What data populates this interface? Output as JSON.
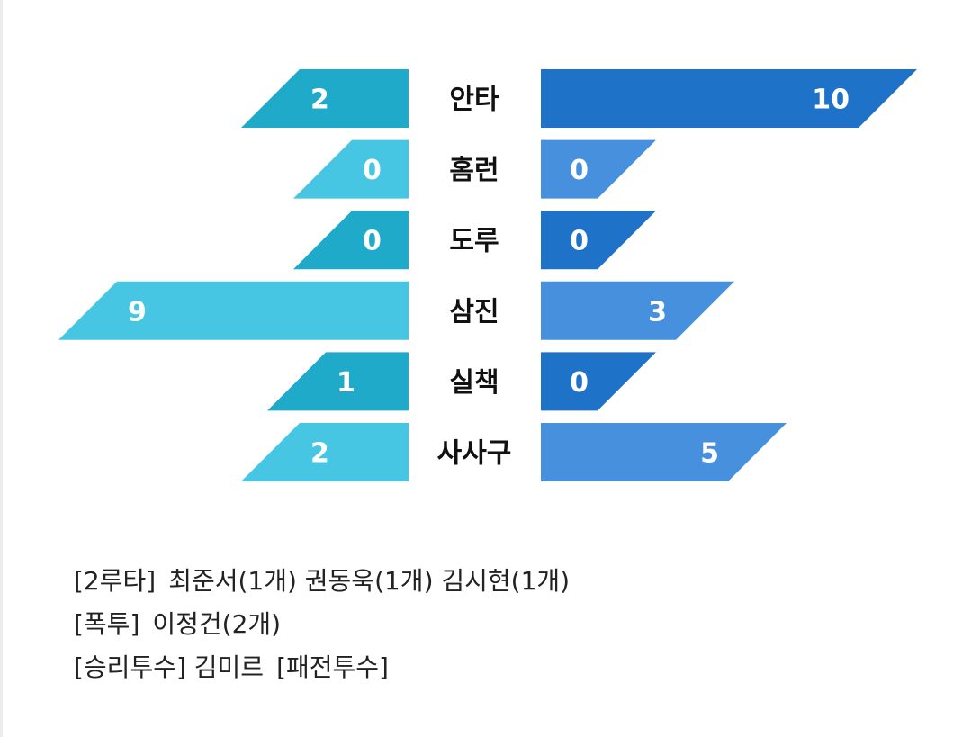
{
  "chart_data": {
    "type": "bar",
    "orientation": "horizontal-diverging",
    "categories": [
      "안타",
      "홈런",
      "도루",
      "삼진",
      "실책",
      "사사구"
    ],
    "series": [
      {
        "side": "left",
        "values": [
          2,
          0,
          0,
          9,
          1,
          2
        ]
      },
      {
        "side": "right",
        "values": [
          10,
          0,
          0,
          3,
          0,
          5
        ]
      }
    ],
    "colors": {
      "left_dark": "#1eaac8",
      "left_light": "#46c6e2",
      "right_dark": "#1e72c8",
      "right_light": "#4690de"
    }
  },
  "notes": [
    {
      "label": "[2루타]",
      "text": "최준서(1개) 권동욱(1개) 김시현(1개)"
    },
    {
      "label": "[폭투]",
      "text": "이정건(2개)"
    },
    {
      "label": "[승리투수] 김미르",
      "text": "[패전투수]"
    }
  ]
}
